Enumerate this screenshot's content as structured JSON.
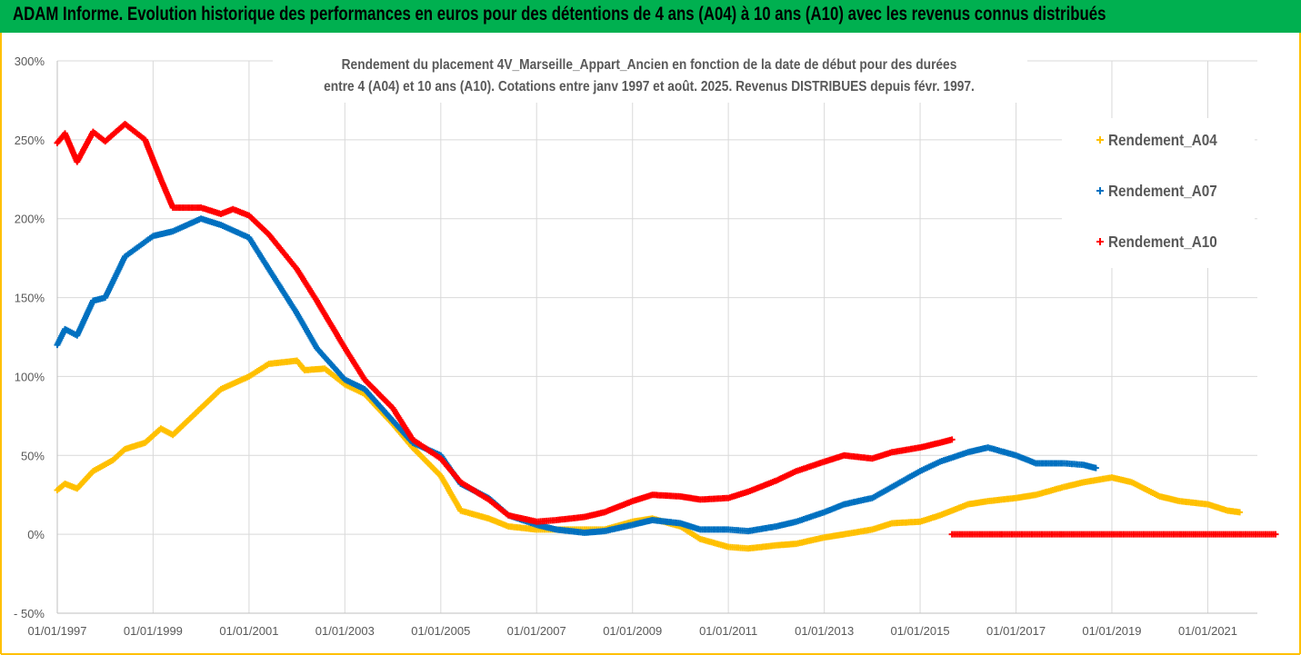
{
  "header": {
    "title": "ADAM Informe. Evolution historique des performances en euros pour des détentions de 4 ans (A04) à 10 ans (A10) avec les revenus connus distribués"
  },
  "colors": {
    "header_bg": "#00b050",
    "frame": "#ffc000",
    "A04": "#ffc000",
    "A07": "#0070c0",
    "A10": "#ff0000",
    "grid": "#d9d9d9",
    "text": "#595959"
  },
  "chart_data": {
    "type": "scatter",
    "title_lines": [
      "Rendement du placement 4V_Marseille_Appart_Ancien en fonction de la date de début pour des durées",
      "entre 4 (A04) et 10 ans (A10). Cotations entre janv 1997 et août. 2025. Revenus DISTRIBUES depuis févr. 1997."
    ],
    "xlabel": "",
    "ylabel": "",
    "x_range": [
      "1997-01-01",
      "2022-06-01"
    ],
    "y_range": [
      -50,
      300
    ],
    "y_ticks": [
      "300%",
      "250%",
      "200%",
      "150%",
      "100%",
      "50%",
      "0%",
      "- 50%"
    ],
    "x_ticks": [
      "01/01/1997",
      "01/01/1999",
      "01/01/2001",
      "01/01/2003",
      "01/01/2005",
      "01/01/2007",
      "01/01/2009",
      "01/01/2011",
      "01/01/2013",
      "01/01/2015",
      "01/01/2017",
      "01/01/2019",
      "01/01/2021"
    ],
    "legend_position": "right",
    "series": [
      {
        "name": "Rendement_A04",
        "points": [
          [
            "1997-01-01",
            28
          ],
          [
            "1997-03-01",
            32
          ],
          [
            "1997-06-01",
            29
          ],
          [
            "1997-10-01",
            40
          ],
          [
            "1998-03-01",
            47
          ],
          [
            "1998-06-01",
            54
          ],
          [
            "1998-11-01",
            58
          ],
          [
            "1999-03-01",
            67
          ],
          [
            "1999-06-01",
            63
          ],
          [
            "2000-01-01",
            80
          ],
          [
            "2000-06-01",
            92
          ],
          [
            "2001-01-01",
            100
          ],
          [
            "2001-06-01",
            108
          ],
          [
            "2002-01-01",
            110
          ],
          [
            "2002-03-01",
            104
          ],
          [
            "2002-08-01",
            105
          ],
          [
            "2003-01-01",
            95
          ],
          [
            "2003-06-01",
            89
          ],
          [
            "2004-01-01",
            70
          ],
          [
            "2004-06-01",
            55
          ],
          [
            "2005-01-01",
            37
          ],
          [
            "2005-06-01",
            15
          ],
          [
            "2006-01-01",
            10
          ],
          [
            "2006-06-01",
            5
          ],
          [
            "2007-01-01",
            3
          ],
          [
            "2008-01-01",
            3
          ],
          [
            "2008-06-01",
            3
          ],
          [
            "2009-01-01",
            8
          ],
          [
            "2009-06-01",
            10
          ],
          [
            "2010-01-01",
            5
          ],
          [
            "2010-06-01",
            -3
          ],
          [
            "2011-01-01",
            -8
          ],
          [
            "2011-06-01",
            -9
          ],
          [
            "2012-01-01",
            -7
          ],
          [
            "2012-06-01",
            -6
          ],
          [
            "2013-01-01",
            -2
          ],
          [
            "2013-06-01",
            0
          ],
          [
            "2014-01-01",
            3
          ],
          [
            "2014-06-01",
            7
          ],
          [
            "2015-01-01",
            8
          ],
          [
            "2015-06-01",
            12
          ],
          [
            "2016-01-01",
            19
          ],
          [
            "2016-06-01",
            21
          ],
          [
            "2017-01-01",
            23
          ],
          [
            "2017-06-01",
            25
          ],
          [
            "2018-01-01",
            30
          ],
          [
            "2018-06-01",
            33
          ],
          [
            "2019-01-01",
            36
          ],
          [
            "2019-06-01",
            33
          ],
          [
            "2020-01-01",
            24
          ],
          [
            "2020-06-01",
            21
          ],
          [
            "2021-01-01",
            19
          ],
          [
            "2021-06-01",
            15
          ],
          [
            "2021-09-01",
            14
          ]
        ]
      },
      {
        "name": "Rendement_A07",
        "points": [
          [
            "1997-01-01",
            120
          ],
          [
            "1997-03-01",
            130
          ],
          [
            "1997-06-01",
            126
          ],
          [
            "1997-10-01",
            148
          ],
          [
            "1998-01-01",
            150
          ],
          [
            "1998-06-01",
            176
          ],
          [
            "1999-01-01",
            189
          ],
          [
            "1999-06-01",
            192
          ],
          [
            "2000-01-01",
            200
          ],
          [
            "2000-06-01",
            196
          ],
          [
            "2001-01-01",
            188
          ],
          [
            "2001-06-01",
            168
          ],
          [
            "2002-01-01",
            140
          ],
          [
            "2002-06-01",
            118
          ],
          [
            "2003-01-01",
            98
          ],
          [
            "2003-06-01",
            92
          ],
          [
            "2004-01-01",
            72
          ],
          [
            "2004-06-01",
            58
          ],
          [
            "2005-01-01",
            50
          ],
          [
            "2005-06-01",
            32
          ],
          [
            "2006-01-01",
            23
          ],
          [
            "2006-06-01",
            12
          ],
          [
            "2007-01-01",
            6
          ],
          [
            "2007-06-01",
            3
          ],
          [
            "2008-01-01",
            1
          ],
          [
            "2008-06-01",
            2
          ],
          [
            "2009-01-01",
            6
          ],
          [
            "2009-06-01",
            9
          ],
          [
            "2010-01-01",
            7
          ],
          [
            "2010-06-01",
            3
          ],
          [
            "2011-01-01",
            3
          ],
          [
            "2011-06-01",
            2
          ],
          [
            "2012-01-01",
            5
          ],
          [
            "2012-06-01",
            8
          ],
          [
            "2013-01-01",
            14
          ],
          [
            "2013-06-01",
            19
          ],
          [
            "2014-01-01",
            23
          ],
          [
            "2014-06-01",
            30
          ],
          [
            "2015-01-01",
            40
          ],
          [
            "2015-06-01",
            46
          ],
          [
            "2016-01-01",
            52
          ],
          [
            "2016-06-01",
            55
          ],
          [
            "2017-01-01",
            50
          ],
          [
            "2017-06-01",
            45
          ],
          [
            "2018-01-01",
            45
          ],
          [
            "2018-06-01",
            44
          ],
          [
            "2018-09-01",
            42
          ]
        ]
      },
      {
        "name": "Rendement_A10",
        "points": [
          [
            "1997-01-01",
            248
          ],
          [
            "1997-03-01",
            254
          ],
          [
            "1997-06-01",
            236
          ],
          [
            "1997-10-01",
            255
          ],
          [
            "1998-01-01",
            249
          ],
          [
            "1998-06-01",
            260
          ],
          [
            "1998-11-01",
            250
          ],
          [
            "1999-03-01",
            225
          ],
          [
            "1999-06-01",
            207
          ],
          [
            "2000-01-01",
            207
          ],
          [
            "2000-06-01",
            203
          ],
          [
            "2000-09-01",
            206
          ],
          [
            "2001-01-01",
            202
          ],
          [
            "2001-06-01",
            190
          ],
          [
            "2002-01-01",
            168
          ],
          [
            "2002-06-01",
            148
          ],
          [
            "2003-01-01",
            118
          ],
          [
            "2003-06-01",
            98
          ],
          [
            "2004-01-01",
            80
          ],
          [
            "2004-06-01",
            60
          ],
          [
            "2005-01-01",
            48
          ],
          [
            "2005-06-01",
            33
          ],
          [
            "2006-01-01",
            22
          ],
          [
            "2006-06-01",
            12
          ],
          [
            "2007-01-01",
            8
          ],
          [
            "2007-06-01",
            9
          ],
          [
            "2008-01-01",
            11
          ],
          [
            "2008-06-01",
            14
          ],
          [
            "2009-01-01",
            21
          ],
          [
            "2009-06-01",
            25
          ],
          [
            "2010-01-01",
            24
          ],
          [
            "2010-06-01",
            22
          ],
          [
            "2011-01-01",
            23
          ],
          [
            "2011-06-01",
            27
          ],
          [
            "2012-01-01",
            34
          ],
          [
            "2012-06-01",
            40
          ],
          [
            "2013-01-01",
            46
          ],
          [
            "2013-06-01",
            50
          ],
          [
            "2014-01-01",
            48
          ],
          [
            "2014-06-01",
            52
          ],
          [
            "2015-01-01",
            55
          ],
          [
            "2015-06-01",
            58
          ],
          [
            "2015-09-01",
            60
          ],
          [
            "2015-09-01",
            0
          ],
          [
            "2022-06-01",
            0
          ]
        ]
      }
    ]
  }
}
